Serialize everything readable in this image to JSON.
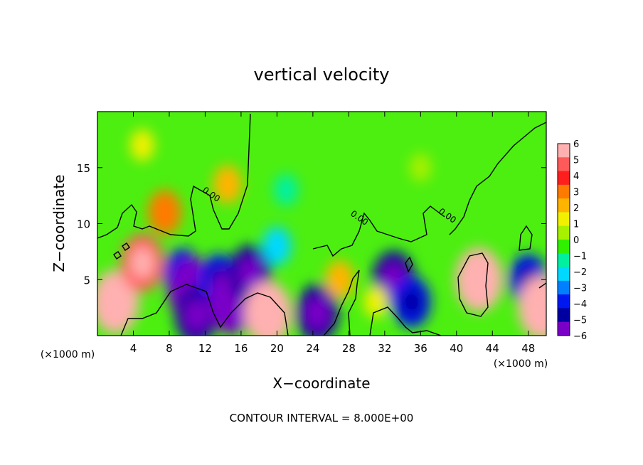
{
  "chart_data": {
    "type": "heatmap",
    "title": "vertical velocity",
    "xlabel": "X−coordinate",
    "ylabel": "Z−coordinate",
    "x_unit_left": "(×1000 m)",
    "x_unit_right": "(×1000 m)",
    "xlim": [
      0,
      50
    ],
    "ylim": [
      0,
      20
    ],
    "x_ticks": [
      4,
      8,
      12,
      16,
      20,
      24,
      28,
      32,
      36,
      40,
      44,
      48
    ],
    "y_ticks": [
      5,
      10,
      15
    ],
    "footer": "CONTOUR INTERVAL = 8.000E+00",
    "colorbar": {
      "min": -6,
      "max": 6,
      "labels": [
        "6",
        "5",
        "4",
        "3",
        "2",
        "1",
        "0",
        "−1",
        "−2",
        "−3",
        "−4",
        "−5",
        "−6"
      ],
      "colors": [
        "#ffb0b0",
        "#ff5a5a",
        "#ff1e1e",
        "#ff7a00",
        "#ffb400",
        "#f0f000",
        "#a6f000",
        "#30f000",
        "#00f0a0",
        "#00d8ff",
        "#0080ff",
        "#0018f0",
        "#0000a0",
        "#7a00c8"
      ]
    },
    "features": [
      {
        "x": 2,
        "z": 3,
        "value": 6
      },
      {
        "x": 5,
        "z": 6.5,
        "value": 5
      },
      {
        "x": 7.5,
        "z": 11,
        "value": 3
      },
      {
        "x": 9.5,
        "z": 5.5,
        "value": -4
      },
      {
        "x": 10.5,
        "z": 4,
        "value": -6
      },
      {
        "x": 11,
        "z": 1.8,
        "value": -5
      },
      {
        "x": 13.5,
        "z": 5,
        "value": -4
      },
      {
        "x": 15,
        "z": 3,
        "value": -6
      },
      {
        "x": 17,
        "z": 5.5,
        "value": -5
      },
      {
        "x": 19,
        "z": 2,
        "value": 6
      },
      {
        "x": 14.5,
        "z": 13.5,
        "value": 2
      },
      {
        "x": 20,
        "z": 8,
        "value": -2
      },
      {
        "x": 24.5,
        "z": 2,
        "value": -5
      },
      {
        "x": 27,
        "z": 5,
        "value": 2
      },
      {
        "x": 33,
        "z": 5,
        "value": -5
      },
      {
        "x": 35,
        "z": 3,
        "value": -4
      },
      {
        "x": 42.5,
        "z": 5,
        "value": 6
      },
      {
        "x": 48,
        "z": 5,
        "value": -4
      },
      {
        "x": 49.5,
        "z": 2.5,
        "value": 6
      },
      {
        "x": 21,
        "z": 13,
        "value": -1
      },
      {
        "x": 5,
        "z": 17,
        "value": 1
      },
      {
        "x": 36,
        "z": 15,
        "value": 0.5
      },
      {
        "x": 31,
        "z": 3,
        "value": 1
      }
    ],
    "contour_labels": [
      {
        "x": 12.5,
        "z": 12.4,
        "text": "0.00"
      },
      {
        "x": 29,
        "z": 10.3,
        "text": "0.00"
      },
      {
        "x": 38.8,
        "z": 10.5,
        "text": "0.00"
      }
    ]
  }
}
